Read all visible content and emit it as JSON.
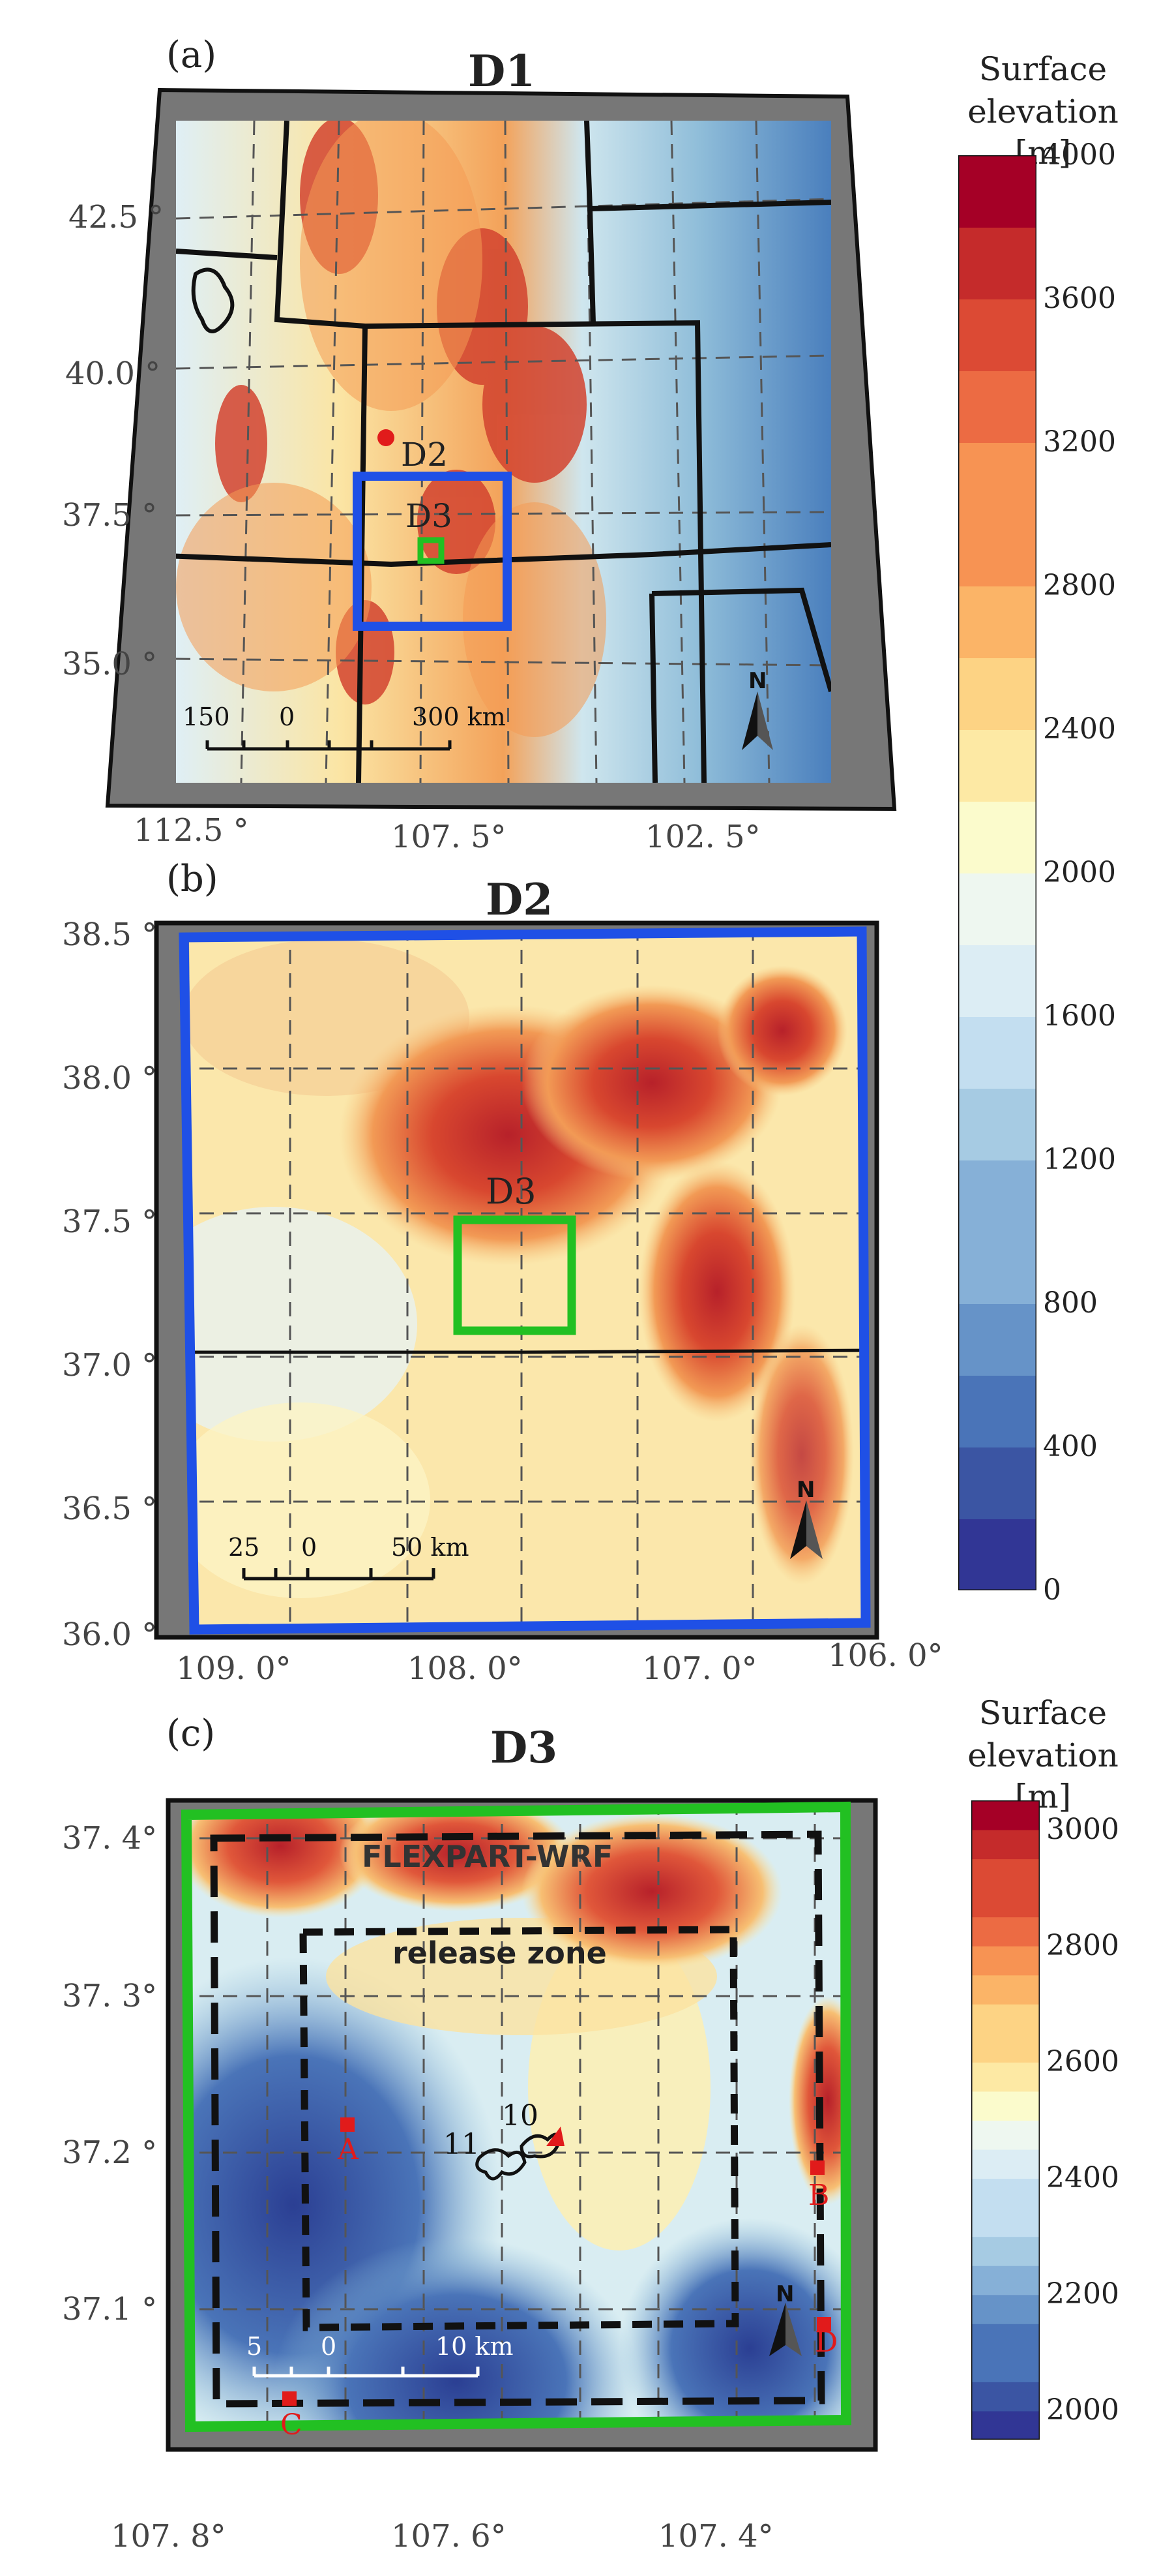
{
  "panels": {
    "a": {
      "label": "(a)",
      "title": "D1",
      "lat_ticks": [
        "42.5 °",
        "40.0 °",
        "37.5 °",
        "35.0 °"
      ],
      "lon_ticks": [
        "112.5 °",
        "107. 5°",
        "102. 5°"
      ],
      "markers": {
        "d2": "D2",
        "d3": "D3"
      },
      "scalebar": {
        "left": "150",
        "zero": "0",
        "right": "300 km"
      },
      "north": "N"
    },
    "b": {
      "label": "(b)",
      "title": "D2",
      "lat_ticks": [
        "38.5 °",
        "38.0 °",
        "37.5 °",
        "37.0 °",
        "36.5 °",
        "36.0 °"
      ],
      "lon_ticks": [
        "109. 0°",
        "108. 0°",
        "107. 0°",
        "106. 0°"
      ],
      "markers": {
        "d3": "D3"
      },
      "scalebar": {
        "left": "25",
        "zero": "0",
        "right": "50 km"
      },
      "north": "N"
    },
    "c": {
      "label": "(c)",
      "title": "D3",
      "lat_ticks": [
        "37. 4°",
        "37. 3°",
        "37.2 °",
        "37.1 °"
      ],
      "lon_ticks": [
        "107. 8°",
        "107. 6°",
        "107. 4°"
      ],
      "box_labels": {
        "outer": "FLEXPART-WRF",
        "inner": "release zone"
      },
      "fire_labels": {
        "a": "11",
        "b": "10"
      },
      "sites": [
        "A",
        "B",
        "C",
        "D"
      ],
      "scalebar": {
        "left": "5",
        "zero": "0",
        "right": "10 km"
      },
      "north": "N"
    }
  },
  "colorbar_top": {
    "title_line1": "Surface",
    "title_line2": "elevation [m]",
    "ticks": [
      "4000",
      "3600",
      "3200",
      "2800",
      "2400",
      "2000",
      "1600",
      "1200",
      "800",
      "400",
      "0"
    ],
    "range": [
      0,
      4000
    ]
  },
  "colorbar_bottom": {
    "title_line1": "Surface",
    "title_line2": "elevation [m]",
    "ticks": [
      "3000",
      "2800",
      "2600",
      "2400",
      "2200",
      "2000"
    ],
    "range": [
      1950,
      3050
    ]
  },
  "colors": {
    "d2_box": "#1f50e6",
    "d3_box": "#22c022",
    "marker_red": "#e11b1b",
    "frame": "#777777"
  }
}
